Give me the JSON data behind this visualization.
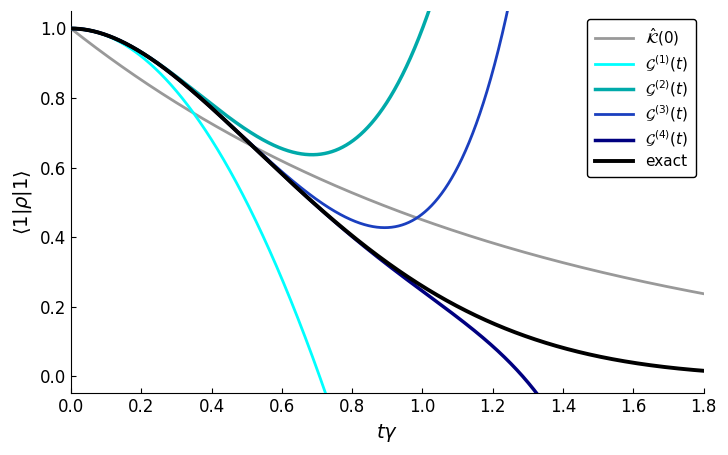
{
  "xlabel": "$t\\gamma$",
  "ylabel": "$\\langle 1|\\rho|1\\rangle$",
  "xlim": [
    0,
    1.8
  ],
  "ylim": [
    -0.05,
    1.05
  ],
  "xticks": [
    0,
    0.2,
    0.4,
    0.6,
    0.8,
    1.0,
    1.2,
    1.4,
    1.6,
    1.8
  ],
  "yticks": [
    0,
    0.2,
    0.4,
    0.6,
    0.8,
    1.0
  ],
  "background_color": "#ffffff",
  "curves": {
    "exact": {
      "color": "#000000",
      "lw": 2.8,
      "label": "exact",
      "zorder": 10
    },
    "K0": {
      "color": "#999999",
      "lw": 2.0,
      "label": "$\\hat{\\mathcal{K}}(0)$",
      "zorder": 5
    },
    "G1": {
      "color": "#00ffff",
      "lw": 2.0,
      "label": "$\\mathcal{G}^{(1)}(t)$",
      "zorder": 6
    },
    "G2": {
      "color": "#00aaaa",
      "lw": 2.5,
      "label": "$\\mathcal{G}^{(2)}(t)$",
      "zorder": 7
    },
    "G3": {
      "color": "#1a3fbf",
      "lw": 2.0,
      "label": "$\\mathcal{G}^{(3)}(t)$",
      "zorder": 8
    },
    "G4": {
      "color": "#000080",
      "lw": 2.5,
      "label": "$\\mathcal{G}^{(4)}(t)$",
      "zorder": 9
    }
  },
  "legend_fontsize": 11,
  "axis_fontsize": 14,
  "tick_fontsize": 12
}
